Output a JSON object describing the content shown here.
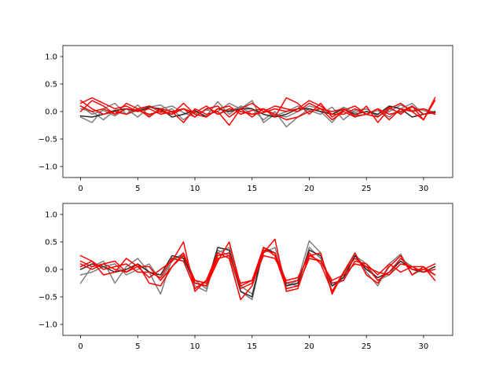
{
  "chart_data": [
    {
      "type": "line",
      "xlim": [
        -1.55,
        32.55
      ],
      "ylim": [
        -1.2,
        1.2
      ],
      "xticks": [
        0,
        5,
        10,
        15,
        20,
        25,
        30
      ],
      "yticks": [
        -1.0,
        -0.5,
        0.0,
        0.5,
        1.0
      ],
      "xtick_labels": [
        "0",
        "5",
        "10",
        "15",
        "20",
        "25",
        "30"
      ],
      "ytick_labels": [
        "−1.0",
        "−0.5",
        "0.0",
        "0.5",
        "1.0"
      ],
      "grid": false,
      "legend": "none",
      "series": [
        {
          "color": "#7f7f7f",
          "values": [
            0.1,
            -0.05,
            0.02,
            -0.08,
            0.05,
            -0.1,
            0.08,
            0.12,
            -0.02,
            0.05,
            -0.05,
            0.03,
            0.0,
            0.15,
            0.05,
            0.2,
            -0.2,
            -0.05,
            -0.1,
            0.0,
            0.1,
            0.05,
            -0.05,
            0.08,
            -0.02,
            0.05,
            -0.08,
            0.0,
            0.12,
            0.02,
            0.05,
            -0.02
          ]
        },
        {
          "color": "#7f7f7f",
          "values": [
            -0.1,
            -0.2,
            0.05,
            0.15,
            -0.05,
            0.02,
            0.1,
            -0.02,
            0.05,
            -0.15,
            0.0,
            -0.08,
            0.18,
            -0.05,
            0.1,
            0.05,
            -0.15,
            0.0,
            -0.28,
            -0.1,
            0.05,
            0.0,
            -0.2,
            0.05,
            -0.1,
            -0.05,
            0.02,
            -0.1,
            0.05,
            0.15,
            -0.05,
            0.0
          ]
        },
        {
          "color": "#7f7f7f",
          "values": [
            0.05,
            0.0,
            -0.15,
            0.02,
            -0.05,
            0.12,
            -0.08,
            0.05,
            0.1,
            -0.02,
            -0.1,
            0.05,
            -0.05,
            0.02,
            0.08,
            -0.05,
            0.05,
            -0.08,
            0.0,
            0.1,
            0.02,
            -0.05,
            0.08,
            -0.15,
            0.02,
            0.05,
            -0.1,
            0.05,
            -0.02,
            0.08,
            0.02,
            -0.05
          ]
        },
        {
          "color": "#2a2a2a",
          "values": [
            -0.08,
            -0.1,
            -0.05,
            0.02,
            0.05,
            0.0,
            0.08,
            0.05,
            -0.1,
            -0.05,
            0.02,
            -0.1,
            0.05,
            0.0,
            0.05,
            0.05,
            -0.05,
            -0.1,
            -0.05,
            0.05,
            0.05,
            0.0,
            -0.05,
            0.05,
            -0.05,
            0.0,
            -0.05,
            0.1,
            0.05,
            -0.1,
            -0.05,
            0.0
          ]
        },
        {
          "color": "#ff0000",
          "values": [
            0.2,
            0.05,
            -0.05,
            0.0,
            -0.05,
            0.05,
            0.1,
            0.02,
            -0.05,
            0.05,
            -0.02,
            0.1,
            -0.05,
            0.05,
            0.0,
            -0.05,
            -0.02,
            0.05,
            0.0,
            0.05,
            0.2,
            0.1,
            -0.05,
            -0.05,
            0.05,
            -0.05,
            -0.1,
            0.08,
            -0.05,
            0.1,
            -0.15,
            0.25
          ]
        },
        {
          "color": "#ff0000",
          "values": [
            0.15,
            0.25,
            0.15,
            0.05,
            0.1,
            0.0,
            0.05,
            -0.05,
            0.0,
            0.05,
            -0.1,
            0.05,
            0.1,
            -0.1,
            0.05,
            0.15,
            0.0,
            0.1,
            0.05,
            0.0,
            0.15,
            0.05,
            0.0,
            0.05,
            -0.08,
            -0.05,
            0.05,
            -0.05,
            0.0,
            0.1,
            -0.05,
            -0.02
          ]
        },
        {
          "color": "#ff0000",
          "values": [
            0.1,
            0.0,
            0.05,
            -0.05,
            0.15,
            0.05,
            -0.1,
            0.05,
            0.0,
            -0.2,
            0.05,
            -0.05,
            0.0,
            -0.25,
            0.05,
            -0.1,
            0.05,
            -0.05,
            -0.15,
            -0.1,
            0.0,
            0.05,
            -0.15,
            0.0,
            -0.1,
            0.1,
            -0.2,
            0.05,
            0.15,
            0.0,
            -0.15,
            0.2
          ]
        },
        {
          "color": "#ff0000",
          "values": [
            0.0,
            0.2,
            0.1,
            -0.05,
            0.05,
            0.02,
            -0.05,
            0.0,
            -0.05,
            0.15,
            -0.05,
            -0.1,
            0.05,
            0.1,
            -0.05,
            0.02,
            0.05,
            -0.1,
            0.25,
            0.15,
            -0.05,
            0.15,
            -0.1,
            0.02,
            0.1,
            -0.05,
            0.05,
            -0.15,
            0.05,
            0.0,
            0.05,
            -0.05
          ]
        }
      ]
    },
    {
      "type": "line",
      "xlim": [
        -1.55,
        32.55
      ],
      "ylim": [
        -1.2,
        1.2
      ],
      "xticks": [
        0,
        5,
        10,
        15,
        20,
        25,
        30
      ],
      "yticks": [
        -1.0,
        -0.5,
        0.0,
        0.5,
        1.0
      ],
      "xtick_labels": [
        "0",
        "5",
        "10",
        "15",
        "20",
        "25",
        "30"
      ],
      "ytick_labels": [
        "−1.0",
        "−0.5",
        "0.0",
        "0.5",
        "1.0"
      ],
      "grid": false,
      "legend": "none",
      "series": [
        {
          "color": "#7f7f7f",
          "values": [
            -0.25,
            0.05,
            0.15,
            -0.25,
            0.05,
            0.2,
            -0.05,
            -0.45,
            0.2,
            0.25,
            -0.3,
            -0.4,
            0.35,
            0.25,
            -0.4,
            -0.55,
            0.35,
            0.3,
            -0.3,
            -0.2,
            0.52,
            0.3,
            -0.4,
            -0.1,
            0.3,
            -0.05,
            -0.3,
            0.1,
            0.28,
            -0.1,
            0.0,
            -0.1
          ]
        },
        {
          "color": "#7f7f7f",
          "values": [
            -0.1,
            -0.05,
            0.05,
            0.1,
            -0.1,
            0.0,
            0.1,
            -0.2,
            0.15,
            0.3,
            -0.2,
            -0.35,
            0.3,
            0.4,
            -0.3,
            -0.45,
            0.3,
            0.4,
            -0.25,
            -0.3,
            0.4,
            0.2,
            -0.3,
            -0.2,
            0.25,
            0.1,
            -0.2,
            -0.1,
            0.2,
            0.05,
            -0.05,
            0.05
          ]
        },
        {
          "color": "#2a2a2a",
          "values": [
            0.0,
            0.1,
            0.05,
            -0.05,
            0.0,
            0.1,
            -0.05,
            -0.1,
            0.25,
            0.2,
            -0.25,
            -0.3,
            0.4,
            0.35,
            -0.4,
            -0.5,
            0.4,
            0.3,
            -0.3,
            -0.25,
            0.35,
            0.25,
            -0.3,
            -0.15,
            0.25,
            0.0,
            -0.15,
            -0.05,
            0.15,
            0.0,
            -0.05,
            0.05
          ]
        },
        {
          "color": "#ff0000",
          "values": [
            0.25,
            0.15,
            -0.1,
            -0.05,
            0.2,
            0.05,
            -0.15,
            0.0,
            0.15,
            0.5,
            -0.4,
            -0.2,
            0.3,
            0.2,
            -0.55,
            -0.3,
            0.3,
            0.55,
            -0.4,
            -0.35,
            0.25,
            0.3,
            -0.45,
            -0.05,
            0.3,
            -0.1,
            -0.25,
            0.05,
            0.25,
            -0.1,
            0.05,
            -0.2
          ]
        },
        {
          "color": "#ff0000",
          "values": [
            0.15,
            0.05,
            0.1,
            0.0,
            -0.05,
            0.1,
            -0.25,
            -0.3,
            0.05,
            0.3,
            -0.25,
            -0.3,
            0.15,
            0.5,
            -0.3,
            -0.2,
            0.4,
            0.25,
            -0.35,
            -0.3,
            0.2,
            0.15,
            -0.25,
            -0.2,
            0.15,
            0.1,
            -0.1,
            0.1,
            -0.05,
            0.05,
            0.05,
            -0.1
          ]
        },
        {
          "color": "#ff0000",
          "values": [
            0.05,
            0.15,
            0.0,
            0.05,
            0.1,
            -0.05,
            -0.05,
            -0.15,
            0.2,
            0.15,
            -0.35,
            -0.2,
            0.25,
            0.3,
            -0.35,
            -0.25,
            0.35,
            0.3,
            -0.25,
            -0.2,
            0.3,
            0.1,
            -0.4,
            -0.05,
            0.2,
            0.05,
            -0.2,
            -0.05,
            0.2,
            0.0,
            0.0,
            0.1
          ]
        },
        {
          "color": "#ff0000",
          "values": [
            0.1,
            0.0,
            0.1,
            0.15,
            -0.05,
            0.05,
            0.05,
            -0.2,
            0.05,
            0.25,
            -0.2,
            -0.25,
            0.2,
            0.25,
            -0.25,
            -0.2,
            0.25,
            0.2,
            -0.2,
            -0.15,
            0.25,
            0.15,
            -0.2,
            -0.1,
            0.1,
            0.05,
            -0.05,
            -0.1,
            0.1,
            0.05,
            -0.05,
            0.0
          ]
        }
      ]
    }
  ]
}
